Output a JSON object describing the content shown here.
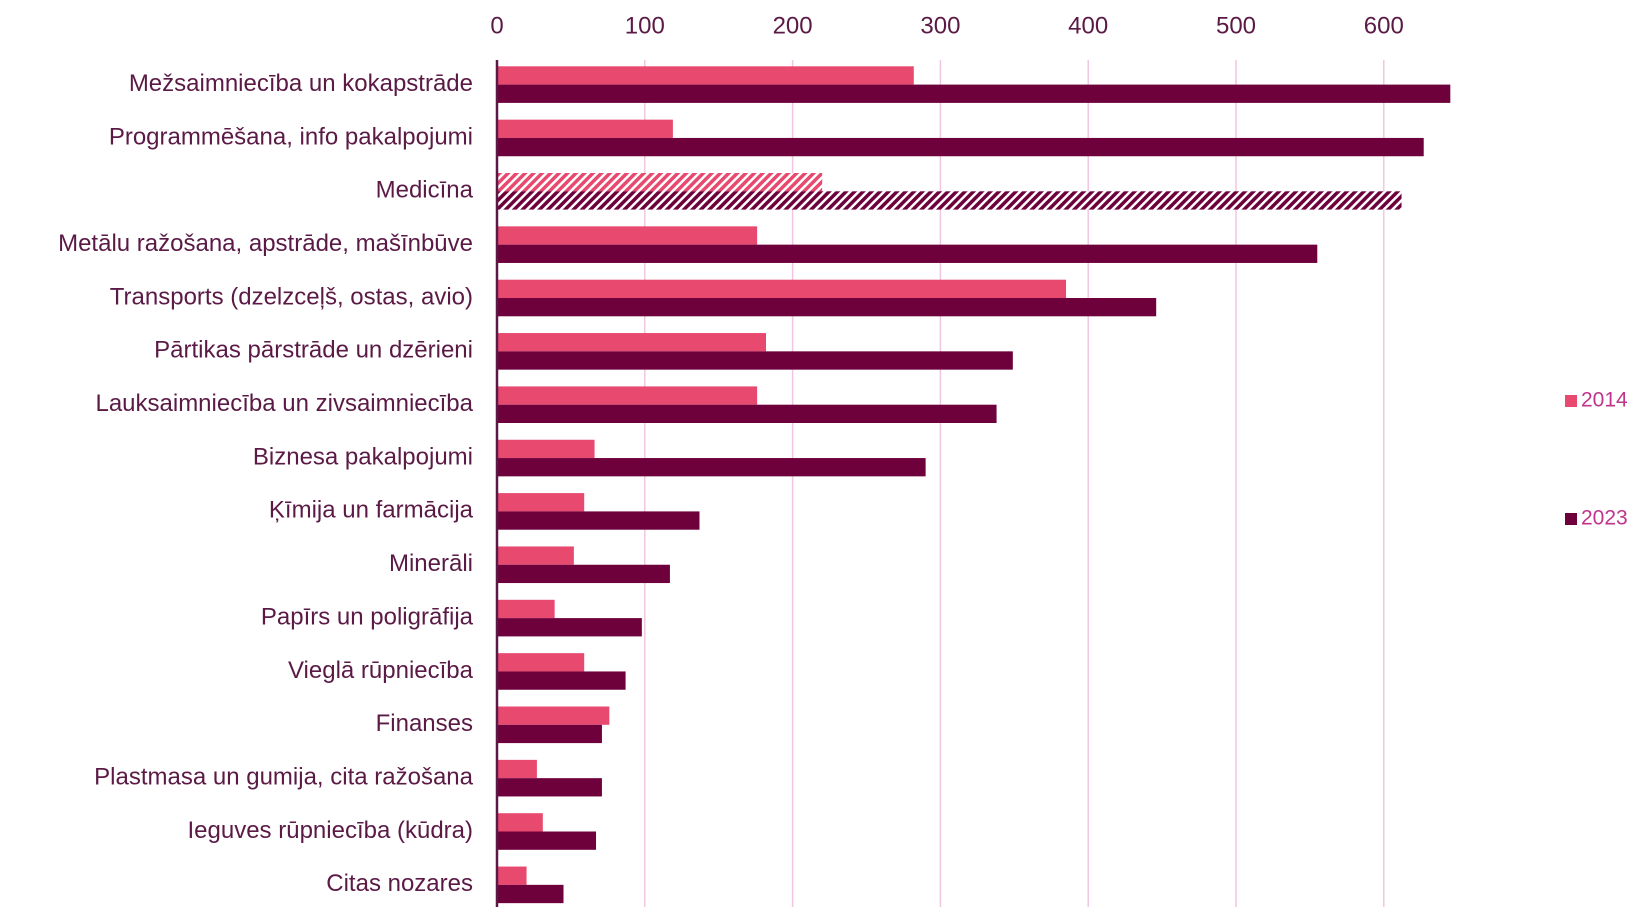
{
  "chart_data": {
    "type": "bar",
    "orientation": "horizontal",
    "categories": [
      "Mežsaimniecība un kokapstrāde",
      "Programmēšana, info pakalpojumi",
      "Medicīna",
      "Metālu ražošana, apstrāde, mašīnbūve",
      "Transports (dzelzceļš, ostas, avio)",
      "Pārtikas pārstrāde un dzērieni",
      "Lauksaimniecība un zivsaimniecība",
      "Biznesa pakalpojumi",
      "Ķīmija un farmācija",
      "Minerāli",
      "Papīrs un poligrāfija",
      "Vieglā rūpniecība",
      "Finanses",
      "Plastmasa un gumija, cita ražošana",
      "Ieguves rūpniecība (kūdra)",
      "Citas nozares"
    ],
    "series": [
      {
        "name": "2014",
        "color": "#e8496e",
        "values": [
          282,
          119,
          220,
          176,
          385,
          182,
          176,
          66,
          59,
          52,
          39,
          59,
          76,
          27,
          31,
          20
        ]
      },
      {
        "name": "2023",
        "color": "#6e003c",
        "values": [
          645,
          627,
          612,
          555,
          446,
          349,
          338,
          290,
          137,
          117,
          98,
          87,
          71,
          71,
          67,
          45
        ]
      }
    ],
    "hatched_index": 2,
    "xlim": [
      0,
      660
    ],
    "xticks": [
      0,
      100,
      200,
      300,
      400,
      500,
      600
    ],
    "grid": true,
    "legend": "right"
  }
}
